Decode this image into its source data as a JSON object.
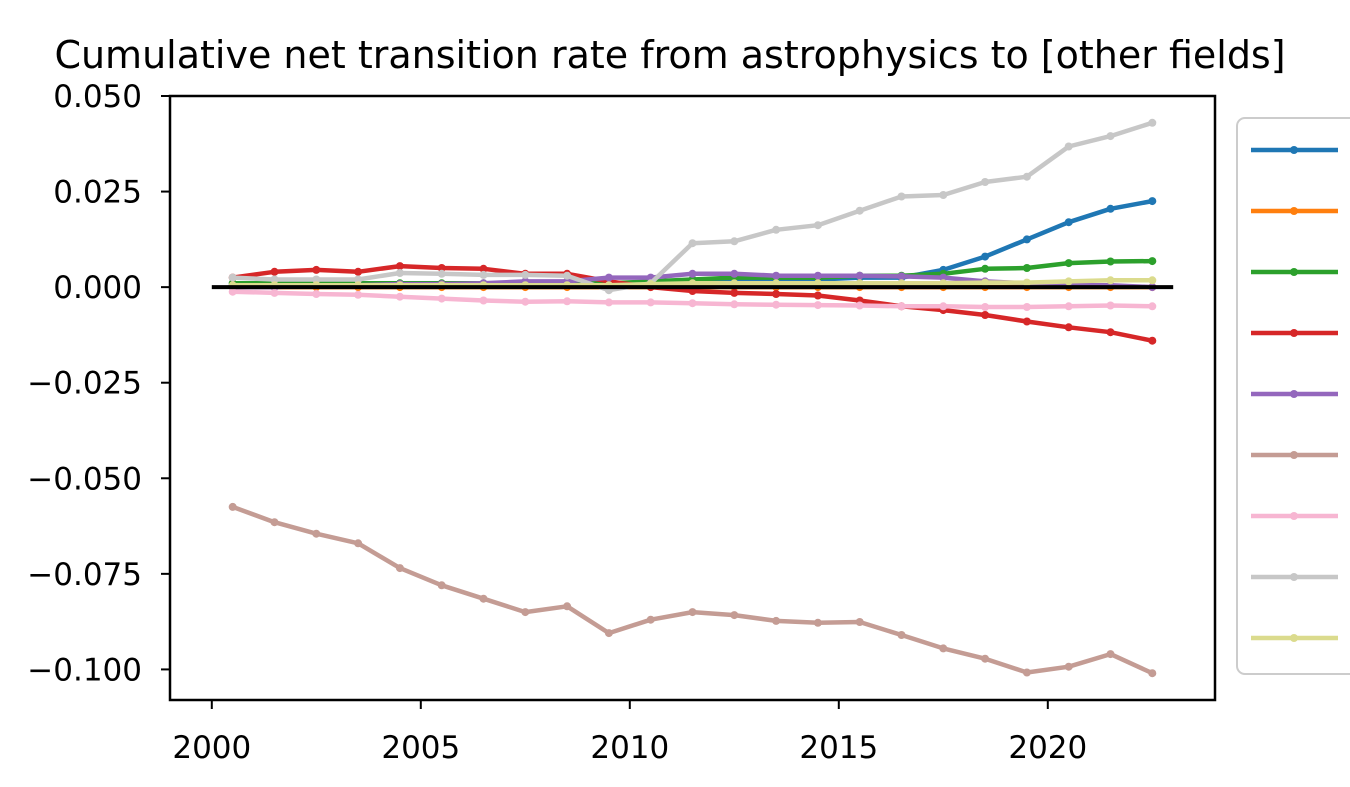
{
  "chart_data": {
    "type": "line",
    "title": "Cumulative net transition rate from astrophysics to [other fields]",
    "xlabel": "",
    "ylabel": "",
    "xlim": [
      1999,
      2024
    ],
    "ylim": [
      -0.108,
      0.05
    ],
    "xticks": [
      2000,
      2005,
      2010,
      2015,
      2020
    ],
    "yticks": [
      0.05,
      0.025,
      0.0,
      -0.025,
      -0.05,
      -0.075,
      -0.1
    ],
    "ytick_labels": [
      "0.050",
      "0.025",
      "0.000",
      "−0.025",
      "−0.050",
      "−0.075",
      "−0.100"
    ],
    "grid": false,
    "legend": "right-outside",
    "zero_line": 0,
    "x": [
      2000.5,
      2001.5,
      2002.5,
      2003.5,
      2004.5,
      2005.5,
      2006.5,
      2007.5,
      2008.5,
      2009.5,
      2010.5,
      2011.5,
      2012.5,
      2013.5,
      2014.5,
      2015.5,
      2016.5,
      2017.5,
      2018.5,
      2019.5,
      2020.5,
      2021.5,
      2022.5
    ],
    "series": [
      {
        "color": "#1f77b4",
        "values": [
          0.0005,
          0.0005,
          0.0005,
          0.0005,
          0.0005,
          0.0005,
          0.0005,
          0.0005,
          0.0005,
          0.0005,
          0.001,
          0.0015,
          0.002,
          0.002,
          0.002,
          0.0025,
          0.0025,
          0.0045,
          0.008,
          0.0125,
          0.017,
          0.0205,
          0.0225
        ]
      },
      {
        "color": "#ff7f0e",
        "values": [
          0.0,
          0.0,
          0.0,
          0.0,
          0.0,
          0.0,
          0.0,
          0.0,
          0.0,
          0.0,
          0.0,
          0.0,
          0.0,
          0.0,
          0.0,
          0.0,
          0.0,
          0.0,
          0.0,
          0.0,
          0.0,
          0.0,
          0.0
        ]
      },
      {
        "color": "#2ca02c",
        "values": [
          0.001,
          0.001,
          0.001,
          0.001,
          0.001,
          0.001,
          0.001,
          0.001,
          0.001,
          0.001,
          0.0015,
          0.002,
          0.0025,
          0.0025,
          0.0025,
          0.003,
          0.003,
          0.0035,
          0.0048,
          0.005,
          0.0063,
          0.0067,
          0.0068
        ]
      },
      {
        "color": "#d62728",
        "values": [
          0.0025,
          0.004,
          0.0045,
          0.004,
          0.0055,
          0.005,
          0.0048,
          0.0035,
          0.0035,
          0.0015,
          0.0,
          -0.001,
          -0.0015,
          -0.0018,
          -0.0022,
          -0.0035,
          -0.005,
          -0.006,
          -0.0073,
          -0.009,
          -0.0105,
          -0.0118,
          -0.014
        ]
      },
      {
        "color": "#9467bd",
        "values": [
          0.0,
          0.0,
          0.0005,
          0.0005,
          0.0008,
          0.0008,
          0.001,
          0.0015,
          0.0015,
          0.0025,
          0.0025,
          0.0035,
          0.0035,
          0.003,
          0.003,
          0.003,
          0.0028,
          0.0025,
          0.0015,
          0.001,
          0.0005,
          0.0005,
          0.0
        ]
      },
      {
        "color": "#c49c94",
        "values": [
          -0.0575,
          -0.0615,
          -0.0645,
          -0.067,
          -0.0735,
          -0.078,
          -0.0815,
          -0.085,
          -0.0835,
          -0.0905,
          -0.087,
          -0.085,
          -0.0858,
          -0.0873,
          -0.0878,
          -0.0876,
          -0.091,
          -0.0945,
          -0.0972,
          -0.1008,
          -0.0993,
          -0.096,
          -0.101
        ]
      },
      {
        "color": "#f7b6d2",
        "values": [
          -0.0012,
          -0.0015,
          -0.0018,
          -0.002,
          -0.0025,
          -0.003,
          -0.0035,
          -0.0038,
          -0.0037,
          -0.004,
          -0.004,
          -0.0042,
          -0.0045,
          -0.0046,
          -0.0047,
          -0.0048,
          -0.005,
          -0.005,
          -0.0052,
          -0.0052,
          -0.005,
          -0.0048,
          -0.005
        ]
      },
      {
        "color": "#c7c7c7",
        "values": [
          0.0025,
          0.002,
          0.002,
          0.002,
          0.0037,
          0.0035,
          0.0032,
          0.0032,
          0.003,
          -0.0008,
          0.001,
          0.0115,
          0.012,
          0.015,
          0.0162,
          0.02,
          0.0237,
          0.0241,
          0.0275,
          0.0289,
          0.0368,
          0.0395,
          0.043
        ]
      },
      {
        "color": "#dbdb8d",
        "values": [
          0.0005,
          0.0005,
          0.0005,
          0.0005,
          0.0005,
          0.0005,
          0.0005,
          0.0005,
          0.0005,
          0.0005,
          0.0008,
          0.001,
          0.001,
          0.001,
          0.001,
          0.001,
          0.001,
          0.001,
          0.0012,
          0.0012,
          0.0015,
          0.0018,
          0.0018
        ]
      }
    ]
  }
}
